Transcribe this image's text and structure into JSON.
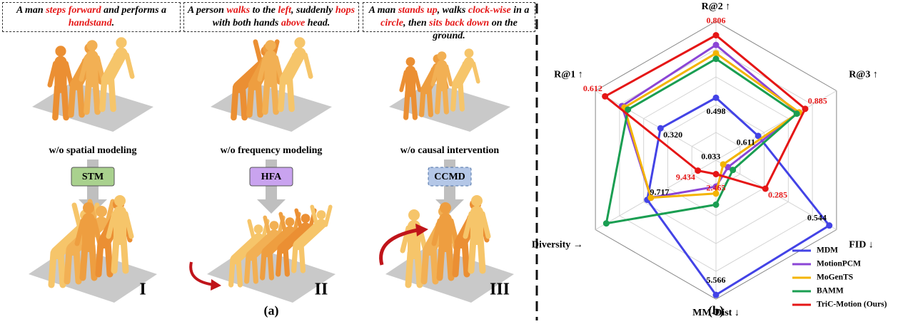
{
  "panel_a": {
    "label": "(a)",
    "columns": [
      {
        "caption": [
          {
            "text": "A man ",
            "highlight": false
          },
          {
            "text": "steps forward",
            "highlight": true
          },
          {
            "text": " and performs a ",
            "highlight": false
          },
          {
            "text": "handstand",
            "highlight": true
          },
          {
            "text": ".",
            "highlight": false
          }
        ],
        "ablation": "w/o spatial modeling",
        "module": "STM",
        "module_color": "#a9d18e",
        "numeral": "I"
      },
      {
        "caption": [
          {
            "text": "A person ",
            "highlight": false
          },
          {
            "text": "walks",
            "highlight": true
          },
          {
            "text": " to the ",
            "highlight": false
          },
          {
            "text": "left",
            "highlight": true
          },
          {
            "text": ", suddenly ",
            "highlight": false
          },
          {
            "text": "hops",
            "highlight": true
          },
          {
            "text": " with both hands ",
            "highlight": false
          },
          {
            "text": "above",
            "highlight": true
          },
          {
            "text": " head.",
            "highlight": false
          }
        ],
        "ablation": "w/o frequency modeling",
        "module": "HFA",
        "module_color": "#c9a3ef",
        "numeral": "II"
      },
      {
        "caption": [
          {
            "text": "A man ",
            "highlight": false
          },
          {
            "text": "stands up",
            "highlight": true
          },
          {
            "text": ", walks ",
            "highlight": false
          },
          {
            "text": "clock-wise",
            "highlight": true
          },
          {
            "text": " in a ",
            "highlight": false
          },
          {
            "text": "circle",
            "highlight": true
          },
          {
            "text": ", then ",
            "highlight": false
          },
          {
            "text": "sits back down",
            "highlight": true
          },
          {
            "text": " on the ground.",
            "highlight": false
          }
        ],
        "ablation": "w/o causal intervention",
        "module": "CCMD",
        "module_color": "#b4c7e7",
        "numeral": "III"
      }
    ]
  },
  "panel_b": {
    "label": "(b)",
    "chart_data": {
      "type": "radar",
      "axes": [
        "R@2 ↑",
        "R@3 ↑",
        "FID ↓",
        "MM-Dist ↓",
        "Diversity →",
        "R@1 ↑"
      ],
      "rlim": [
        0,
        1
      ],
      "rticks": [
        0.2,
        0.4,
        0.6,
        0.8,
        1
      ],
      "series": [
        {
          "name": "MDM",
          "color": "#4343e6",
          "values": [
            0.45,
            0.35,
            0.94,
            0.97,
            0.57,
            0.46
          ]
        },
        {
          "name": "MotionPCM",
          "color": "#8b45d6",
          "values": [
            0.83,
            0.68,
            0.1,
            0.19,
            0.54,
            0.78
          ]
        },
        {
          "name": "MoGenTS",
          "color": "#f4b400",
          "values": [
            0.77,
            0.69,
            0.06,
            0.24,
            0.54,
            0.76
          ]
        },
        {
          "name": "BAMM",
          "color": "#1a9e52",
          "values": [
            0.73,
            0.67,
            0.14,
            0.32,
            0.91,
            0.73
          ]
        },
        {
          "name": "TriC-Motion (Ours)",
          "color": "#e51616",
          "values": [
            0.9,
            0.74,
            0.41,
            0.1,
            0.15,
            0.92
          ]
        }
      ],
      "point_labels": [
        {
          "series": 0,
          "axis": 0,
          "label": "0.498",
          "color": "#000000"
        },
        {
          "series": 0,
          "axis": 1,
          "label": "0.611",
          "color": "#000000"
        },
        {
          "series": 0,
          "axis": 2,
          "label": "0.544",
          "color": "#000000"
        },
        {
          "series": 0,
          "axis": 3,
          "label": "5.566",
          "color": "#000000"
        },
        {
          "series": 0,
          "axis": 4,
          "label": "9.717",
          "color": "#000000"
        },
        {
          "series": 0,
          "axis": 5,
          "label": "0.320",
          "color": "#000000"
        },
        {
          "series": 2,
          "axis": 2,
          "label": "0.033",
          "color": "#000000"
        },
        {
          "series": 4,
          "axis": 0,
          "label": "0.806",
          "color": "#e51616"
        },
        {
          "series": 4,
          "axis": 1,
          "label": "0.885",
          "color": "#e51616"
        },
        {
          "series": 4,
          "axis": 2,
          "label": "0.285",
          "color": "#e51616"
        },
        {
          "series": 4,
          "axis": 3,
          "label": "2.465",
          "color": "#e51616"
        },
        {
          "series": 4,
          "axis": 4,
          "label": "9.434",
          "color": "#e51616"
        },
        {
          "series": 4,
          "axis": 5,
          "label": "0.612",
          "color": "#e51616"
        }
      ],
      "legend": "lower right"
    }
  }
}
